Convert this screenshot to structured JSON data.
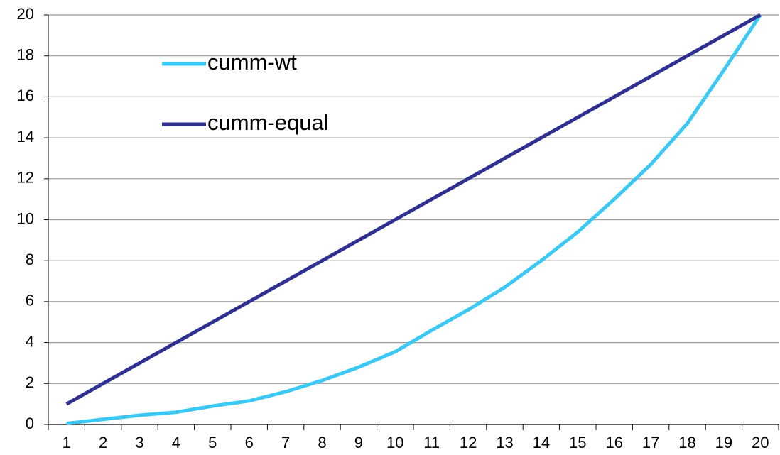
{
  "chart_data": {
    "type": "line",
    "categories": [
      "1",
      "2",
      "3",
      "4",
      "5",
      "6",
      "7",
      "8",
      "9",
      "10",
      "11",
      "12",
      "13",
      "14",
      "15",
      "16",
      "17",
      "18",
      "19",
      "20"
    ],
    "series": [
      {
        "name": "cumm-wt",
        "color": "#3cc8f5",
        "values": [
          0.05,
          0.25,
          0.45,
          0.6,
          0.9,
          1.15,
          1.6,
          2.15,
          2.8,
          3.55,
          4.6,
          5.6,
          6.7,
          8.0,
          9.4,
          11.0,
          12.7,
          14.7,
          17.3,
          20
        ]
      },
      {
        "name": "cumm-equal",
        "color": "#2e3192",
        "values": [
          1,
          2,
          3,
          4,
          5,
          6,
          7,
          8,
          9,
          10,
          11,
          12,
          13,
          14,
          15,
          16,
          17,
          18,
          19,
          20
        ]
      }
    ],
    "ylim": [
      0,
      20
    ],
    "yticks": [
      0,
      2,
      4,
      6,
      8,
      10,
      12,
      14,
      16,
      18,
      20
    ],
    "grid": true,
    "legend": "upper left"
  }
}
